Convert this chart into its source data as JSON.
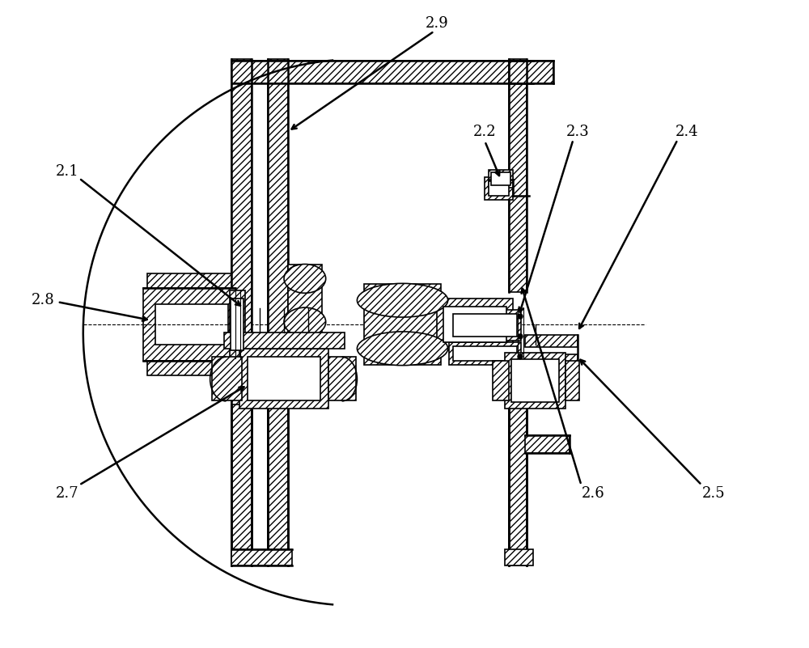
{
  "background_color": "#ffffff",
  "line_color": "#000000",
  "label_fontsize": 13,
  "fig_width": 10.0,
  "fig_height": 8.01
}
